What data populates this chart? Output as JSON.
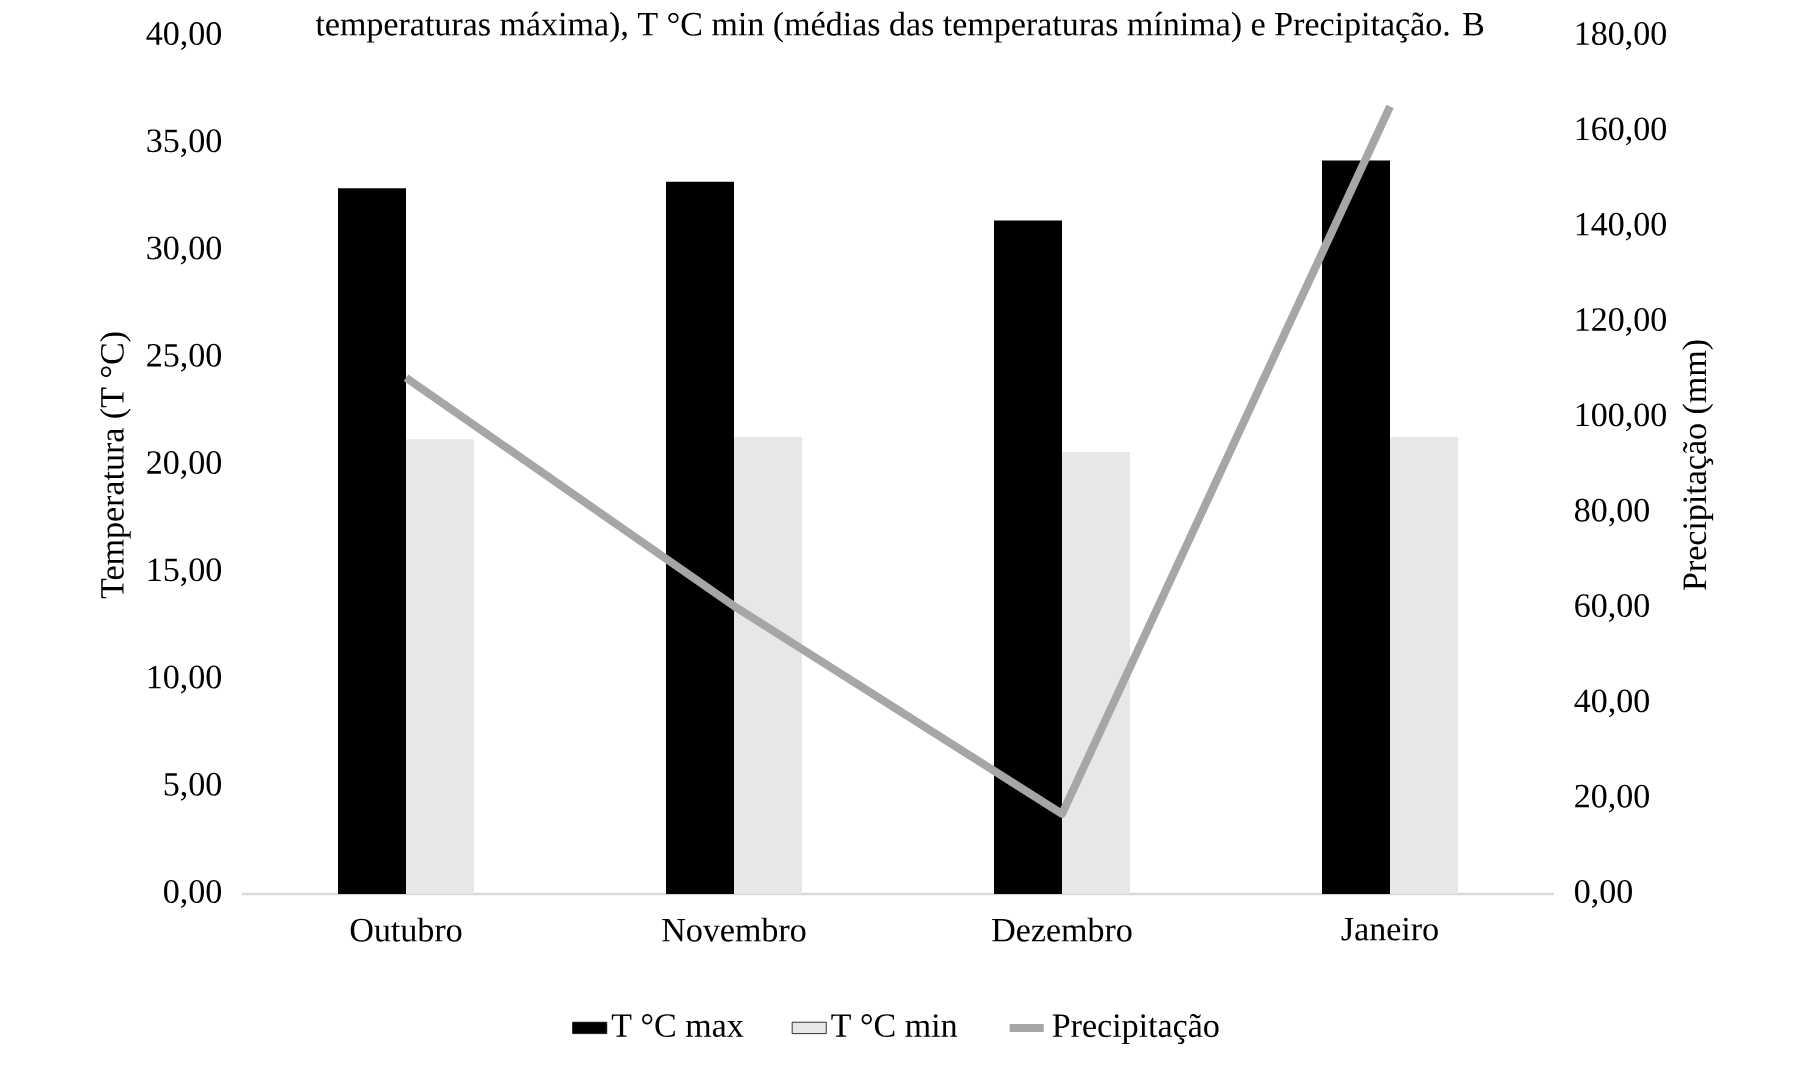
{
  "chart_data": {
    "type": "bar",
    "title": "temperaturas máxima), T °C min (médias das temperaturas mínima) e Precipitação. B",
    "categories": [
      "Outubro",
      "Novembro",
      "Dezembro",
      "Janeiro"
    ],
    "series": [
      {
        "name": "T °C max",
        "color": "#000000",
        "values": [
          32.9,
          33.2,
          31.4,
          34.2
        ]
      },
      {
        "name": "T °C min",
        "color": "#e7e7e7",
        "values": [
          21.2,
          21.3,
          20.6,
          21.3
        ]
      },
      {
        "name": "Precipitação",
        "type": "line",
        "axis": "y2",
        "color": "#a6a6a6",
        "values": [
          108.3,
          60.4,
          16.8,
          165.2
        ]
      }
    ],
    "ylabel": "Temperatura (T °C)",
    "y2label": "Precipitação (mm)",
    "ylim": [
      0,
      40
    ],
    "yticks": [
      {
        "value": 0,
        "label": "0,00"
      },
      {
        "value": 5,
        "label": "5,00"
      },
      {
        "value": 10,
        "label": "10,00"
      },
      {
        "value": 15,
        "label": "15,00"
      },
      {
        "value": 20,
        "label": "20,00"
      },
      {
        "value": 25,
        "label": "25,00"
      },
      {
        "value": 30,
        "label": "30,00"
      },
      {
        "value": 35,
        "label": "35,00"
      },
      {
        "value": 40,
        "label": "40,00"
      }
    ],
    "y2lim": [
      0,
      180
    ],
    "y2ticks": [
      {
        "value": 0,
        "label": "0,00"
      },
      {
        "value": 20,
        "label": "20,00"
      },
      {
        "value": 40,
        "label": "40,00"
      },
      {
        "value": 60,
        "label": "60,00"
      },
      {
        "value": 80,
        "label": "80,00"
      },
      {
        "value": 100,
        "label": "100,00"
      },
      {
        "value": 120,
        "label": "120,00"
      },
      {
        "value": 140,
        "label": "140,00"
      },
      {
        "value": 160,
        "label": "160,00"
      },
      {
        "value": 180,
        "label": "180,00"
      }
    ],
    "legend": "bottom",
    "grid": false,
    "marker": "none",
    "line_style": "solid"
  }
}
